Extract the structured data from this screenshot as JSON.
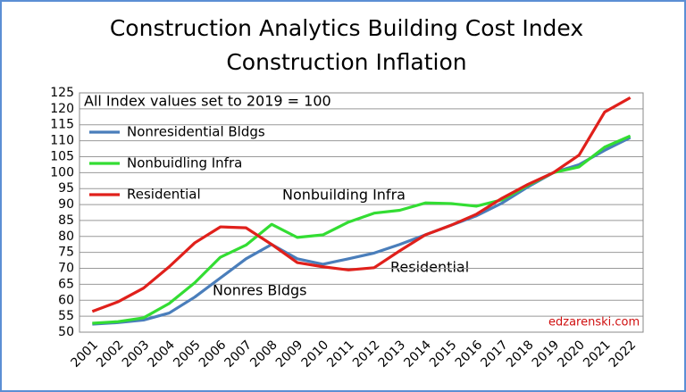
{
  "chart_data": {
    "type": "line",
    "title": "Construction Analytics Building Cost Index",
    "subtitle": "Construction Inflation",
    "categories": [
      "2001",
      "2002",
      "2003",
      "2004",
      "2005",
      "2006",
      "2007",
      "2008",
      "2009",
      "2010",
      "2011",
      "2012",
      "2013",
      "2014",
      "2015",
      "2016",
      "2017",
      "2018",
      "2019",
      "2020",
      "2021",
      "2022"
    ],
    "series": [
      {
        "name": "Nonresidential Bldgs",
        "color": "#4a7ebb",
        "values": [
          52.5,
          53,
          53.8,
          56,
          61,
          67,
          73,
          77.5,
          73,
          71.3,
          73,
          74.8,
          77.5,
          80.5,
          83.5,
          86.5,
          90.5,
          95.5,
          100,
          102.5,
          107,
          111
        ]
      },
      {
        "name": "Nonbuidling Infra",
        "color": "#33dd33",
        "values": [
          52.8,
          53.3,
          54.5,
          59,
          65.5,
          73.5,
          77.3,
          83.8,
          79.7,
          80.5,
          84.5,
          87.3,
          88.2,
          90.5,
          90.3,
          89.5,
          91.5,
          96,
          100,
          101.8,
          108,
          111.5
        ]
      },
      {
        "name": "Residential",
        "color": "#e0201b",
        "values": [
          56.5,
          59.5,
          63.8,
          70.5,
          78,
          83,
          82.7,
          77.5,
          71.8,
          70.5,
          69.5,
          70.2,
          75.5,
          80.5,
          83.5,
          87,
          92,
          96.3,
          100,
          105.5,
          119,
          123.5
        ]
      }
    ],
    "ylim": [
      50,
      125
    ],
    "yticks": [
      50,
      55,
      60,
      65,
      70,
      75,
      80,
      85,
      90,
      95,
      100,
      105,
      110,
      115,
      120,
      125
    ],
    "grid": true,
    "legend": "top-left",
    "note": "All Index values set to 2019 = 100",
    "annotations": [
      "Nonbuilding Infra",
      "Residential",
      "Nonres Bldgs"
    ],
    "credit": "edzarenski.com"
  }
}
